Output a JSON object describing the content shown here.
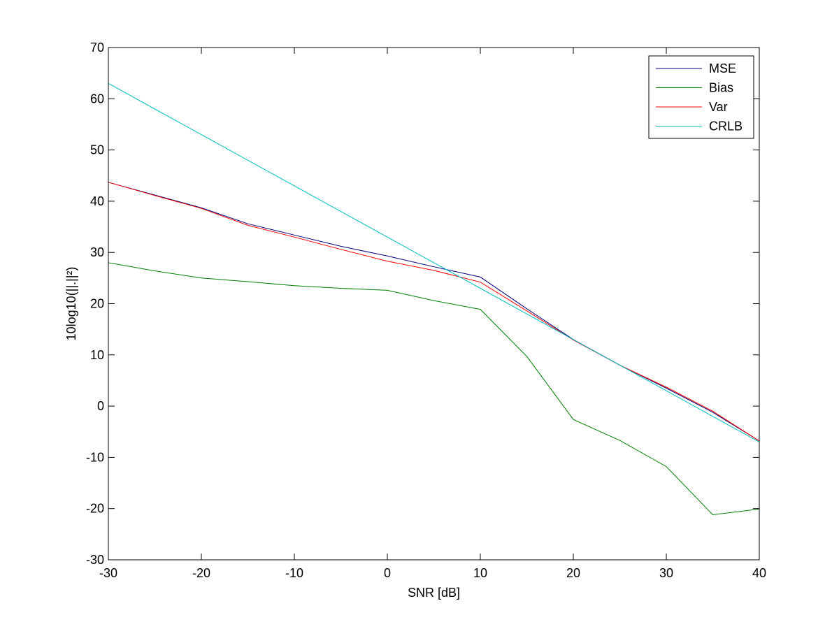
{
  "chart_data": {
    "type": "line",
    "title": "",
    "xlabel": "SNR [dB]",
    "ylabel": "10log10(||.||²)",
    "xlim": [
      -30,
      40
    ],
    "ylim": [
      -30,
      70
    ],
    "xticks": [
      -30,
      -20,
      -10,
      0,
      10,
      20,
      30,
      40
    ],
    "yticks": [
      -30,
      -20,
      -10,
      0,
      10,
      20,
      30,
      40,
      50,
      60,
      70
    ],
    "x": [
      -30,
      -25,
      -20,
      -15,
      -10,
      -5,
      0,
      5,
      10,
      15,
      20,
      25,
      30,
      35,
      40
    ],
    "grid": false,
    "legend_position": "top-right",
    "series": [
      {
        "name": "MSE",
        "color": "#00007f",
        "values": [
          43.7,
          41.2,
          38.7,
          35.6,
          33.4,
          31.2,
          29.3,
          27.2,
          25.2,
          19.0,
          13.0,
          8.0,
          3.5,
          -1.2,
          -6.8
        ]
      },
      {
        "name": "Bias",
        "color": "#007f00",
        "values": [
          28.0,
          26.4,
          25.0,
          24.3,
          23.5,
          23.0,
          22.6,
          20.6,
          18.9,
          9.7,
          -2.6,
          -6.7,
          -11.8,
          -21.2,
          -20.1
        ]
      },
      {
        "name": "Var",
        "color": "#ff0000",
        "values": [
          43.7,
          41.1,
          38.6,
          35.3,
          33.0,
          30.6,
          28.3,
          26.5,
          24.2,
          18.6,
          12.9,
          8.0,
          3.7,
          -1.0,
          -6.8
        ]
      },
      {
        "name": "CRLB",
        "color": "#00bfbf",
        "values": [
          63.0,
          58.0,
          53.0,
          48.0,
          43.0,
          38.0,
          33.0,
          28.0,
          23.0,
          18.0,
          13.0,
          8.0,
          3.0,
          -2.0,
          -7.0
        ]
      }
    ]
  }
}
